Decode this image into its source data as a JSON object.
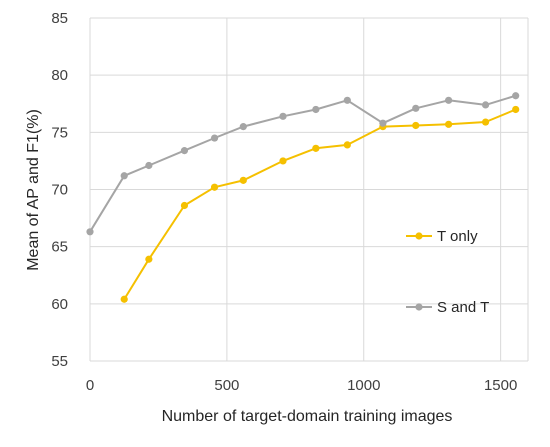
{
  "chart_data": {
    "type": "line",
    "title": "",
    "xlabel": "Number of target-domain training images",
    "ylabel": "Mean of AP and F1(%)",
    "xlim": [
      0,
      1600
    ],
    "ylim": [
      55,
      85
    ],
    "x_ticks": [
      0,
      500,
      1000,
      1500
    ],
    "y_ticks": [
      55,
      60,
      65,
      70,
      75,
      80,
      85
    ],
    "grid": true,
    "legend_position": "right",
    "series": [
      {
        "name": "T only",
        "color": "#f5c000",
        "x": [
          125,
          215,
          345,
          455,
          560,
          705,
          825,
          940,
          1070,
          1190,
          1310,
          1445,
          1555
        ],
        "y": [
          60.4,
          63.9,
          68.6,
          70.2,
          70.8,
          72.5,
          73.6,
          73.9,
          75.5,
          75.6,
          75.7,
          75.9,
          77.0
        ]
      },
      {
        "name": "S and T",
        "color": "#a5a5a5",
        "x": [
          0,
          125,
          215,
          345,
          455,
          560,
          705,
          825,
          940,
          1070,
          1190,
          1310,
          1445,
          1555
        ],
        "y": [
          66.3,
          71.2,
          72.1,
          73.4,
          74.5,
          75.5,
          76.4,
          77.0,
          77.8,
          75.8,
          77.1,
          77.8,
          77.4,
          78.2
        ]
      }
    ]
  }
}
